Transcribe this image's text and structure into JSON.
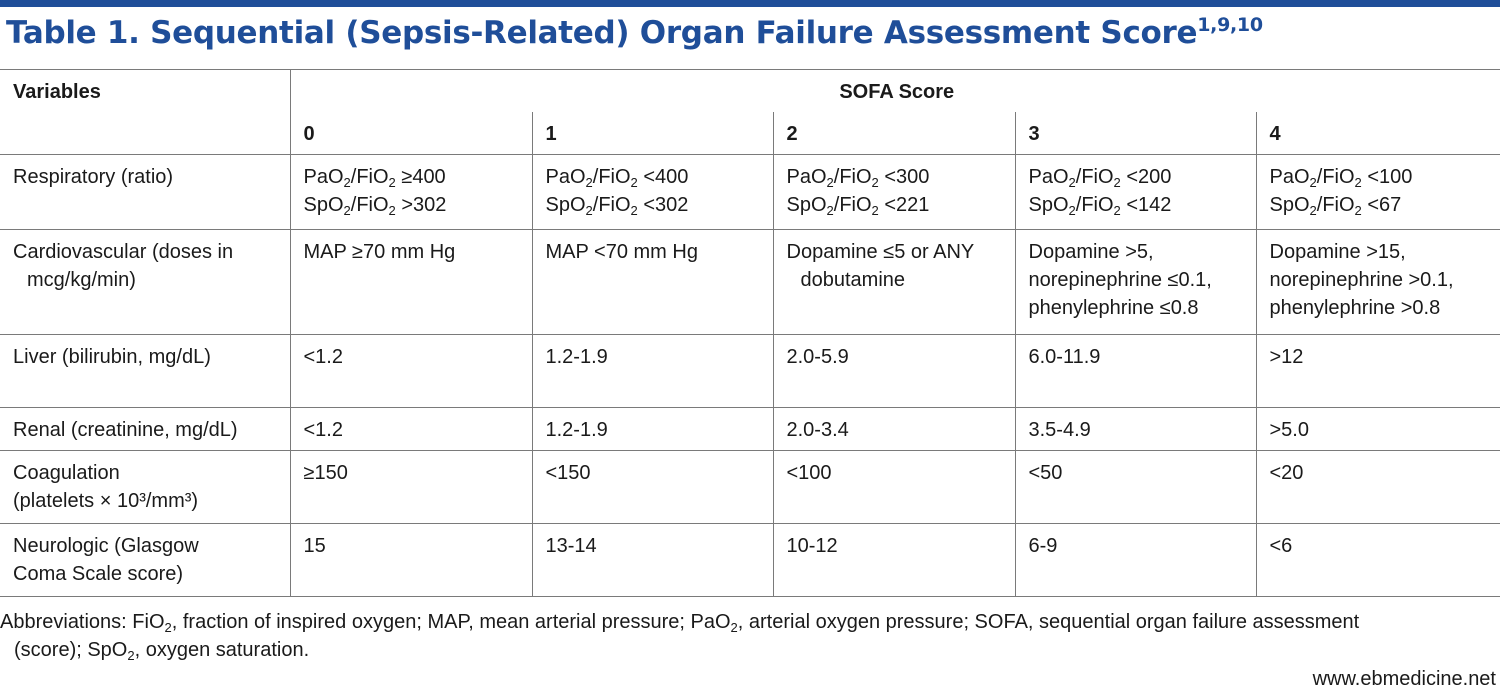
{
  "title": {
    "text": "Table 1. Sequential (Sepsis-Related) Organ Failure Assessment Score",
    "superscript": "1,9,10"
  },
  "header": {
    "variables": "Variables",
    "sofa": "SOFA Score",
    "scores": [
      "0",
      "1",
      "2",
      "3",
      "4"
    ]
  },
  "rows": [
    {
      "label": [
        "Respiratory (ratio)"
      ],
      "cells": [
        [
          [
            "PaO",
            "2",
            "/FiO",
            "2",
            " ≥400"
          ],
          [
            "SpO",
            "2",
            "/FiO",
            "2",
            " >302"
          ]
        ],
        [
          [
            "PaO",
            "2",
            "/FiO",
            "2",
            " <400"
          ],
          [
            "SpO",
            "2",
            "/FiO",
            "2",
            " <302"
          ]
        ],
        [
          [
            "PaO",
            "2",
            "/FiO",
            "2",
            " <300"
          ],
          [
            "SpO",
            "2",
            "/FiO",
            "2",
            " <221"
          ]
        ],
        [
          [
            "PaO",
            "2",
            "/FiO",
            "2",
            " <200"
          ],
          [
            "SpO",
            "2",
            "/FiO",
            "2",
            " <142"
          ]
        ],
        [
          [
            "PaO",
            "2",
            "/FiO",
            "2",
            " <100"
          ],
          [
            "SpO",
            "2",
            "/FiO",
            "2",
            " <67"
          ]
        ]
      ]
    },
    {
      "label": [
        "Cardiovascular (doses in",
        "mcg/kg/min)"
      ],
      "cells": [
        [
          "MAP ≥70 mm Hg"
        ],
        [
          "MAP <70 mm Hg"
        ],
        [
          "Dopamine ≤5 or ANY",
          "dobutamine"
        ],
        [
          "Dopamine >5,",
          "norepinephrine ≤0.1,",
          "phenylephrine ≤0.8"
        ],
        [
          "Dopamine >15,",
          "norepinephrine >0.1,",
          "phenylephrine >0.8"
        ]
      ]
    },
    {
      "label": [
        "Liver (bilirubin, mg/dL)"
      ],
      "cells": [
        [
          "<1.2"
        ],
        [
          "1.2-1.9"
        ],
        [
          "2.0-5.9"
        ],
        [
          "6.0-11.9"
        ],
        [
          ">12"
        ]
      ]
    },
    {
      "label": [
        "Renal (creatinine, mg/dL)"
      ],
      "cells": [
        [
          "<1.2"
        ],
        [
          "1.2-1.9"
        ],
        [
          "2.0-3.4"
        ],
        [
          "3.5-4.9"
        ],
        [
          ">5.0"
        ]
      ]
    },
    {
      "label": [
        "Coagulation",
        "(platelets × 10³/mm³)"
      ],
      "cells": [
        [
          "≥150"
        ],
        [
          "<150"
        ],
        [
          "<100"
        ],
        [
          "<50"
        ],
        [
          "<20"
        ]
      ]
    },
    {
      "label": [
        "Neurologic (Glasgow",
        "Coma Scale score)"
      ],
      "cells": [
        [
          "15"
        ],
        [
          "13-14"
        ],
        [
          "10-12"
        ],
        [
          "6-9"
        ],
        [
          "<6"
        ]
      ]
    }
  ],
  "footnote": {
    "line1_parts": [
      "Abbreviations: FiO",
      "2",
      ", fraction of inspired oxygen; MAP, mean arterial pressure; PaO",
      "2",
      ", arterial oxygen pressure; SOFA, sequential organ failure assessment"
    ],
    "line2_parts": [
      "(score); SpO",
      "2",
      ", oxygen saturation."
    ]
  },
  "source": "www.ebmedicine.net",
  "colors": {
    "accent": "#1f4e99",
    "rule": "#7a7a7a",
    "text": "#1a1a1a"
  }
}
